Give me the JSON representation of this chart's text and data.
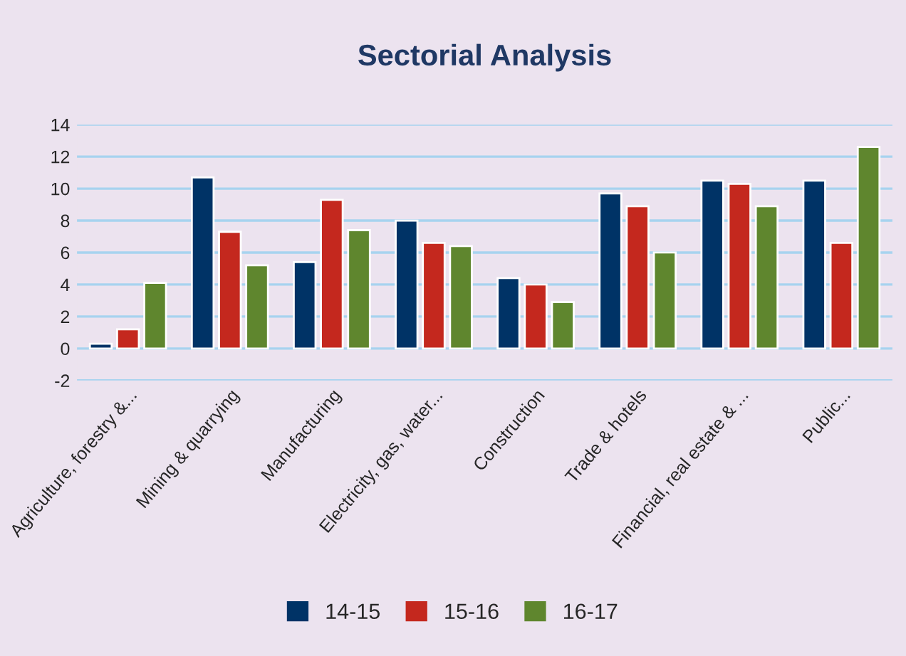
{
  "chart_data": {
    "type": "bar",
    "title": "Sectorial Analysis",
    "categories": [
      "Agriculture, forestry &...",
      "Mining & quarrying",
      "Manufacturing",
      "Electricity, gas, water...",
      "Construction",
      "Trade & hotels",
      "Financial, real estate & ...",
      "Public..."
    ],
    "series": [
      {
        "name": "14-15",
        "color": "#003366",
        "values": [
          0.3,
          10.7,
          5.4,
          8.0,
          4.4,
          9.7,
          10.5,
          10.5
        ]
      },
      {
        "name": "15-16",
        "color": "#c4281e",
        "values": [
          1.2,
          7.3,
          9.3,
          6.6,
          4.0,
          8.9,
          10.3,
          6.6
        ]
      },
      {
        "name": "16-17",
        "color": "#5f862e",
        "values": [
          4.1,
          5.2,
          7.4,
          6.4,
          2.9,
          6.0,
          8.9,
          12.6
        ]
      }
    ],
    "ylim": [
      -2,
      14
    ],
    "yticks": [
      -2,
      0,
      2,
      4,
      6,
      8,
      10,
      12,
      14
    ],
    "grid": "y",
    "legend": "bottom"
  }
}
